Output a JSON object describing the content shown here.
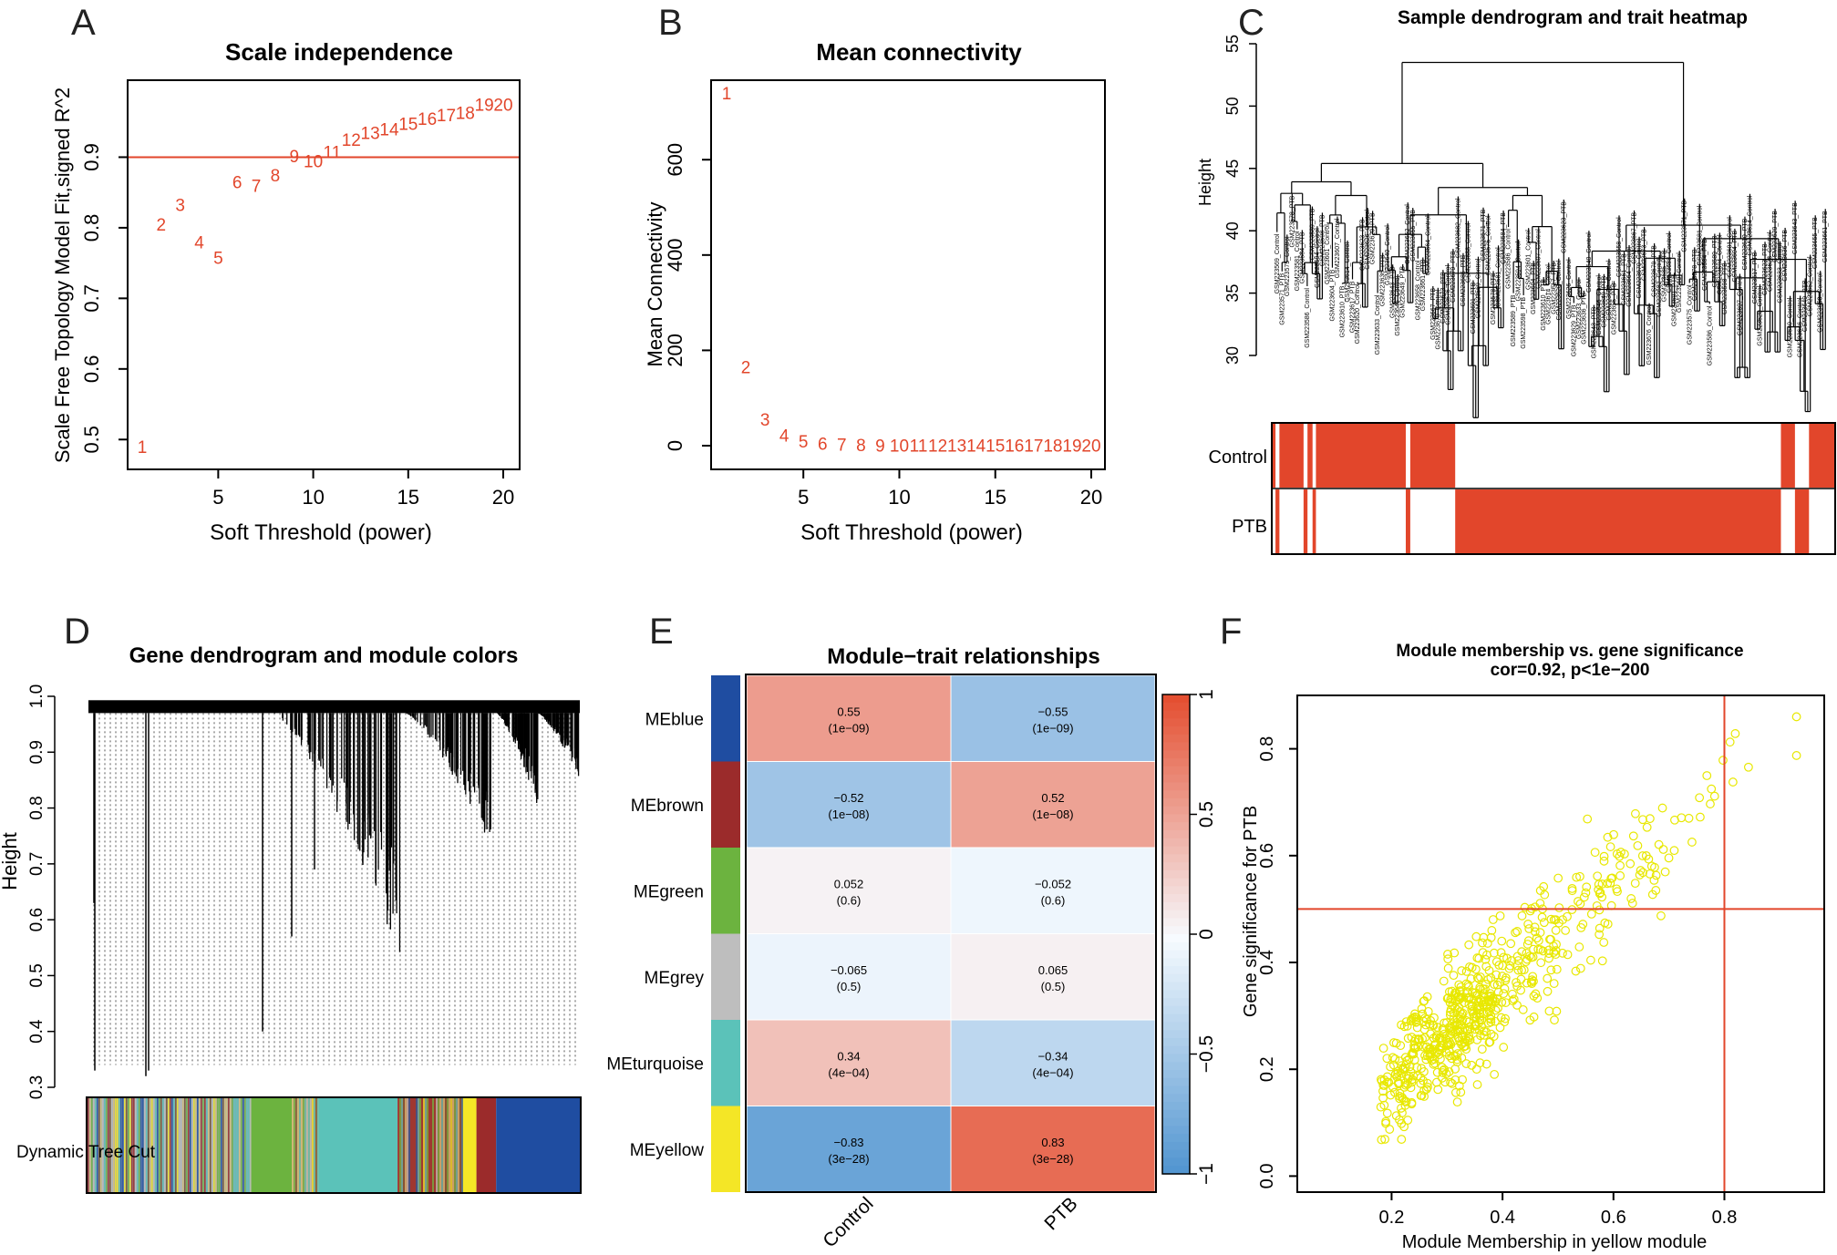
{
  "panels": {
    "A": {
      "letter": "A",
      "chart_data": {
        "type": "scatter",
        "title": "Scale independence",
        "xlabel": "Soft Threshold (power)",
        "ylabel": "Scale Free Topology Model Fit,signed R^2",
        "xlim": [
          1,
          20
        ],
        "ylim": [
          0.49,
          1.0
        ],
        "x_ticks": [
          "5",
          "10",
          "15",
          "20"
        ],
        "y_ticks": [
          "0.5",
          "0.6",
          "0.7",
          "0.8",
          "0.9"
        ],
        "cutoff_line": 0.9,
        "points": [
          {
            "label": "1",
            "x": 1,
            "y": 0.49
          },
          {
            "label": "2",
            "x": 2,
            "y": 0.805
          },
          {
            "label": "3",
            "x": 3,
            "y": 0.833
          },
          {
            "label": "4",
            "x": 4,
            "y": 0.78
          },
          {
            "label": "5",
            "x": 5,
            "y": 0.758
          },
          {
            "label": "6",
            "x": 6,
            "y": 0.865
          },
          {
            "label": "7",
            "x": 7,
            "y": 0.86
          },
          {
            "label": "8",
            "x": 8,
            "y": 0.875
          },
          {
            "label": "9",
            "x": 9,
            "y": 0.902
          },
          {
            "label": "10",
            "x": 10,
            "y": 0.895
          },
          {
            "label": "11",
            "x": 11,
            "y": 0.908
          },
          {
            "label": "12",
            "x": 12,
            "y": 0.925
          },
          {
            "label": "13",
            "x": 13,
            "y": 0.935
          },
          {
            "label": "14",
            "x": 14,
            "y": 0.94
          },
          {
            "label": "15",
            "x": 15,
            "y": 0.948
          },
          {
            "label": "16",
            "x": 16,
            "y": 0.955
          },
          {
            "label": "17",
            "x": 17,
            "y": 0.96
          },
          {
            "label": "18",
            "x": 18,
            "y": 0.963
          },
          {
            "label": "19",
            "x": 19,
            "y": 0.975
          },
          {
            "label": "20",
            "x": 20,
            "y": 0.975
          }
        ]
      }
    },
    "B": {
      "letter": "B",
      "chart_data": {
        "type": "scatter",
        "title": "Mean connectivity",
        "xlabel": "Soft Threshold (power)",
        "ylabel": "Mean Connectivity",
        "xlim": [
          1,
          20
        ],
        "ylim": [
          0,
          740
        ],
        "x_ticks": [
          "5",
          "10",
          "15",
          "20"
        ],
        "y_ticks": [
          "0",
          "200",
          "400",
          "600"
        ],
        "points": [
          {
            "label": "1",
            "x": 1,
            "y": 740
          },
          {
            "label": "2",
            "x": 2,
            "y": 165
          },
          {
            "label": "3",
            "x": 3,
            "y": 55
          },
          {
            "label": "4",
            "x": 4,
            "y": 22
          },
          {
            "label": "5",
            "x": 5,
            "y": 10
          },
          {
            "label": "6",
            "x": 6,
            "y": 5
          },
          {
            "label": "7",
            "x": 7,
            "y": 3
          },
          {
            "label": "8",
            "x": 8,
            "y": 2
          },
          {
            "label": "9",
            "x": 9,
            "y": 1
          },
          {
            "label": "10",
            "x": 10,
            "y": 1
          },
          {
            "label": "11",
            "x": 11,
            "y": 1
          },
          {
            "label": "12",
            "x": 12,
            "y": 1
          },
          {
            "label": "13",
            "x": 13,
            "y": 1
          },
          {
            "label": "14",
            "x": 14,
            "y": 1
          },
          {
            "label": "15",
            "x": 15,
            "y": 1
          },
          {
            "label": "16",
            "x": 16,
            "y": 1
          },
          {
            "label": "17",
            "x": 17,
            "y": 1
          },
          {
            "label": "18",
            "x": 18,
            "y": 1
          },
          {
            "label": "19",
            "x": 19,
            "y": 1
          },
          {
            "label": "20",
            "x": 20,
            "y": 1
          }
        ]
      }
    },
    "C": {
      "letter": "C",
      "chart_data": {
        "type": "dendrogram-heatmap",
        "title": "Sample dendrogram and trait heatmap",
        "ylabel": "Height",
        "ylim": [
          30,
          55
        ],
        "y_ticks": [
          "30",
          "35",
          "40",
          "45",
          "50",
          "55"
        ],
        "trait_rows": [
          "Control",
          "PTB"
        ],
        "leaf_labels": [
          "GSM223569_Control",
          "GSM223571_PTB",
          "GSM223575_Control",
          "GSM223578_PTB",
          "GSM223581_Control",
          "GSM223584_PTB",
          "GSM223586_Control",
          "GSM223589_PTB",
          "GSM223594_Control",
          "GSM223598_PTB",
          "GSM223601_Control",
          "GSM223604_PTB",
          "GSM223607_Control",
          "GSM223610_PTB",
          "GSM223614_Control",
          "GSM223617_PTB",
          "GSM223620_Control",
          "GSM223623_PTB",
          "GSM223626_Control",
          "GSM223629_PTB",
          "GSM223633_Control",
          "GSM223636_PTB",
          "GSM223640_Control",
          "GSM223643_PTB",
          "GSM223646_Control",
          "GSM223649_PTB",
          "GSM223652_Control",
          "GSM223655_PTB",
          "GSM223658_Control",
          "GSM223661_PTB",
          "GSM223664_Control",
          "GSM223667_PTB",
          "GSM223670_Control",
          "GSM223673_PTB",
          "GSM223676_Control",
          "GSM223679_PTB",
          "GSM223682_Control",
          "GSM223685_PTB",
          "GSM223688_Control",
          "GSM223691_PTB"
        ],
        "control_segments": [
          [
            0,
            0.005
          ],
          [
            0.012,
            0.055
          ],
          [
            0.062,
            0.071
          ],
          [
            0.077,
            0.237
          ],
          [
            0.245,
            0.325
          ],
          [
            0.905,
            0.93
          ],
          [
            0.955,
            1.0
          ]
        ],
        "ptb_segments": [
          [
            0.005,
            0.012
          ],
          [
            0.055,
            0.062
          ],
          [
            0.071,
            0.077
          ],
          [
            0.237,
            0.245
          ],
          [
            0.325,
            0.905
          ],
          [
            0.93,
            0.955
          ]
        ]
      }
    },
    "D": {
      "letter": "D",
      "chart_data": {
        "type": "dendrogram-colors",
        "title": "Gene dendrogram and module colors",
        "ylabel": "Height",
        "ylim": [
          0.3,
          1.0
        ],
        "y_ticks": [
          "0.3",
          "0.4",
          "0.5",
          "0.6",
          "0.7",
          "0.8",
          "0.9",
          "1.0"
        ],
        "row_label": "Dynamic Tree Cut",
        "color_blocks": [
          {
            "module": "mixed",
            "from": 0.0,
            "to": 0.33,
            "color": "#9aa7b0"
          },
          {
            "module": "green",
            "from": 0.33,
            "to": 0.415,
            "color": "#6cb33f"
          },
          {
            "module": "mixed",
            "from": 0.415,
            "to": 0.47,
            "color": "#b59a6a"
          },
          {
            "module": "turquoise",
            "from": 0.47,
            "to": 0.63,
            "color": "#5bc2b9"
          },
          {
            "module": "mixed",
            "from": 0.63,
            "to": 0.76,
            "color": "#a8553a"
          },
          {
            "module": "yellow",
            "from": 0.76,
            "to": 0.79,
            "color": "#f4e626"
          },
          {
            "module": "brown",
            "from": 0.79,
            "to": 0.83,
            "color": "#9b2b2b"
          },
          {
            "module": "blue",
            "from": 0.83,
            "to": 1.0,
            "color": "#1f4da1"
          }
        ]
      }
    },
    "E": {
      "letter": "E",
      "chart_data": {
        "type": "heatmap",
        "title": "Module−trait relationships",
        "columns": [
          "Control",
          "PTB"
        ],
        "rows": [
          {
            "name": "MEblue",
            "color": "#1f4da1",
            "cells": [
              {
                "value": 0.55,
                "cor": "0.55",
                "p": "(1e−09)"
              },
              {
                "value": -0.55,
                "cor": "−0.55",
                "p": "(1e−09)"
              }
            ]
          },
          {
            "name": "MEbrown",
            "color": "#9b2b2b",
            "cells": [
              {
                "value": -0.52,
                "cor": "−0.52",
                "p": "(1e−08)"
              },
              {
                "value": 0.52,
                "cor": "0.52",
                "p": "(1e−08)"
              }
            ]
          },
          {
            "name": "MEgreen",
            "color": "#6cb33f",
            "cells": [
              {
                "value": 0.052,
                "cor": "0.052",
                "p": "(0.6)"
              },
              {
                "value": -0.052,
                "cor": "−0.052",
                "p": "(0.6)"
              }
            ]
          },
          {
            "name": "MEgrey",
            "color": "#bebebe",
            "cells": [
              {
                "value": -0.065,
                "cor": "−0.065",
                "p": "(0.5)"
              },
              {
                "value": 0.065,
                "cor": "0.065",
                "p": "(0.5)"
              }
            ]
          },
          {
            "name": "MEturquoise",
            "color": "#5bc2b9",
            "cells": [
              {
                "value": 0.34,
                "cor": "0.34",
                "p": "(4e−04)"
              },
              {
                "value": -0.34,
                "cor": "−0.34",
                "p": "(4e−04)"
              }
            ]
          },
          {
            "name": "MEyellow",
            "color": "#f4e626",
            "cells": [
              {
                "value": -0.83,
                "cor": "−0.83",
                "p": "(3e−28)"
              },
              {
                "value": 0.83,
                "cor": "0.83",
                "p": "(3e−28)"
              }
            ]
          }
        ],
        "scale_ticks": [
          "1",
          "0.5",
          "0",
          "−0.5",
          "−1"
        ],
        "scale_range": [
          -1,
          1
        ]
      }
    },
    "F": {
      "letter": "F",
      "chart_data": {
        "type": "scatter",
        "title": "Module membership vs. gene significance",
        "subtitle": "cor=0.92, p<1e−200",
        "xlabel": "Module Membership in yellow module",
        "ylabel": "Gene significance for  PTB",
        "xlim": [
          0.03,
          0.98
        ],
        "ylim": [
          -0.03,
          0.9
        ],
        "x_ticks": [
          "0.2",
          "0.4",
          "0.6",
          "0.8"
        ],
        "y_ticks": [
          "0.0",
          "0.2",
          "0.4",
          "0.6",
          "0.8"
        ],
        "threshold_x": 0.8,
        "threshold_y": 0.5,
        "point_color": "#e8e800",
        "n_points": 650,
        "trend": {
          "slope": 0.95,
          "intercept": -0.02,
          "noise_sd": 0.055
        }
      }
    }
  }
}
